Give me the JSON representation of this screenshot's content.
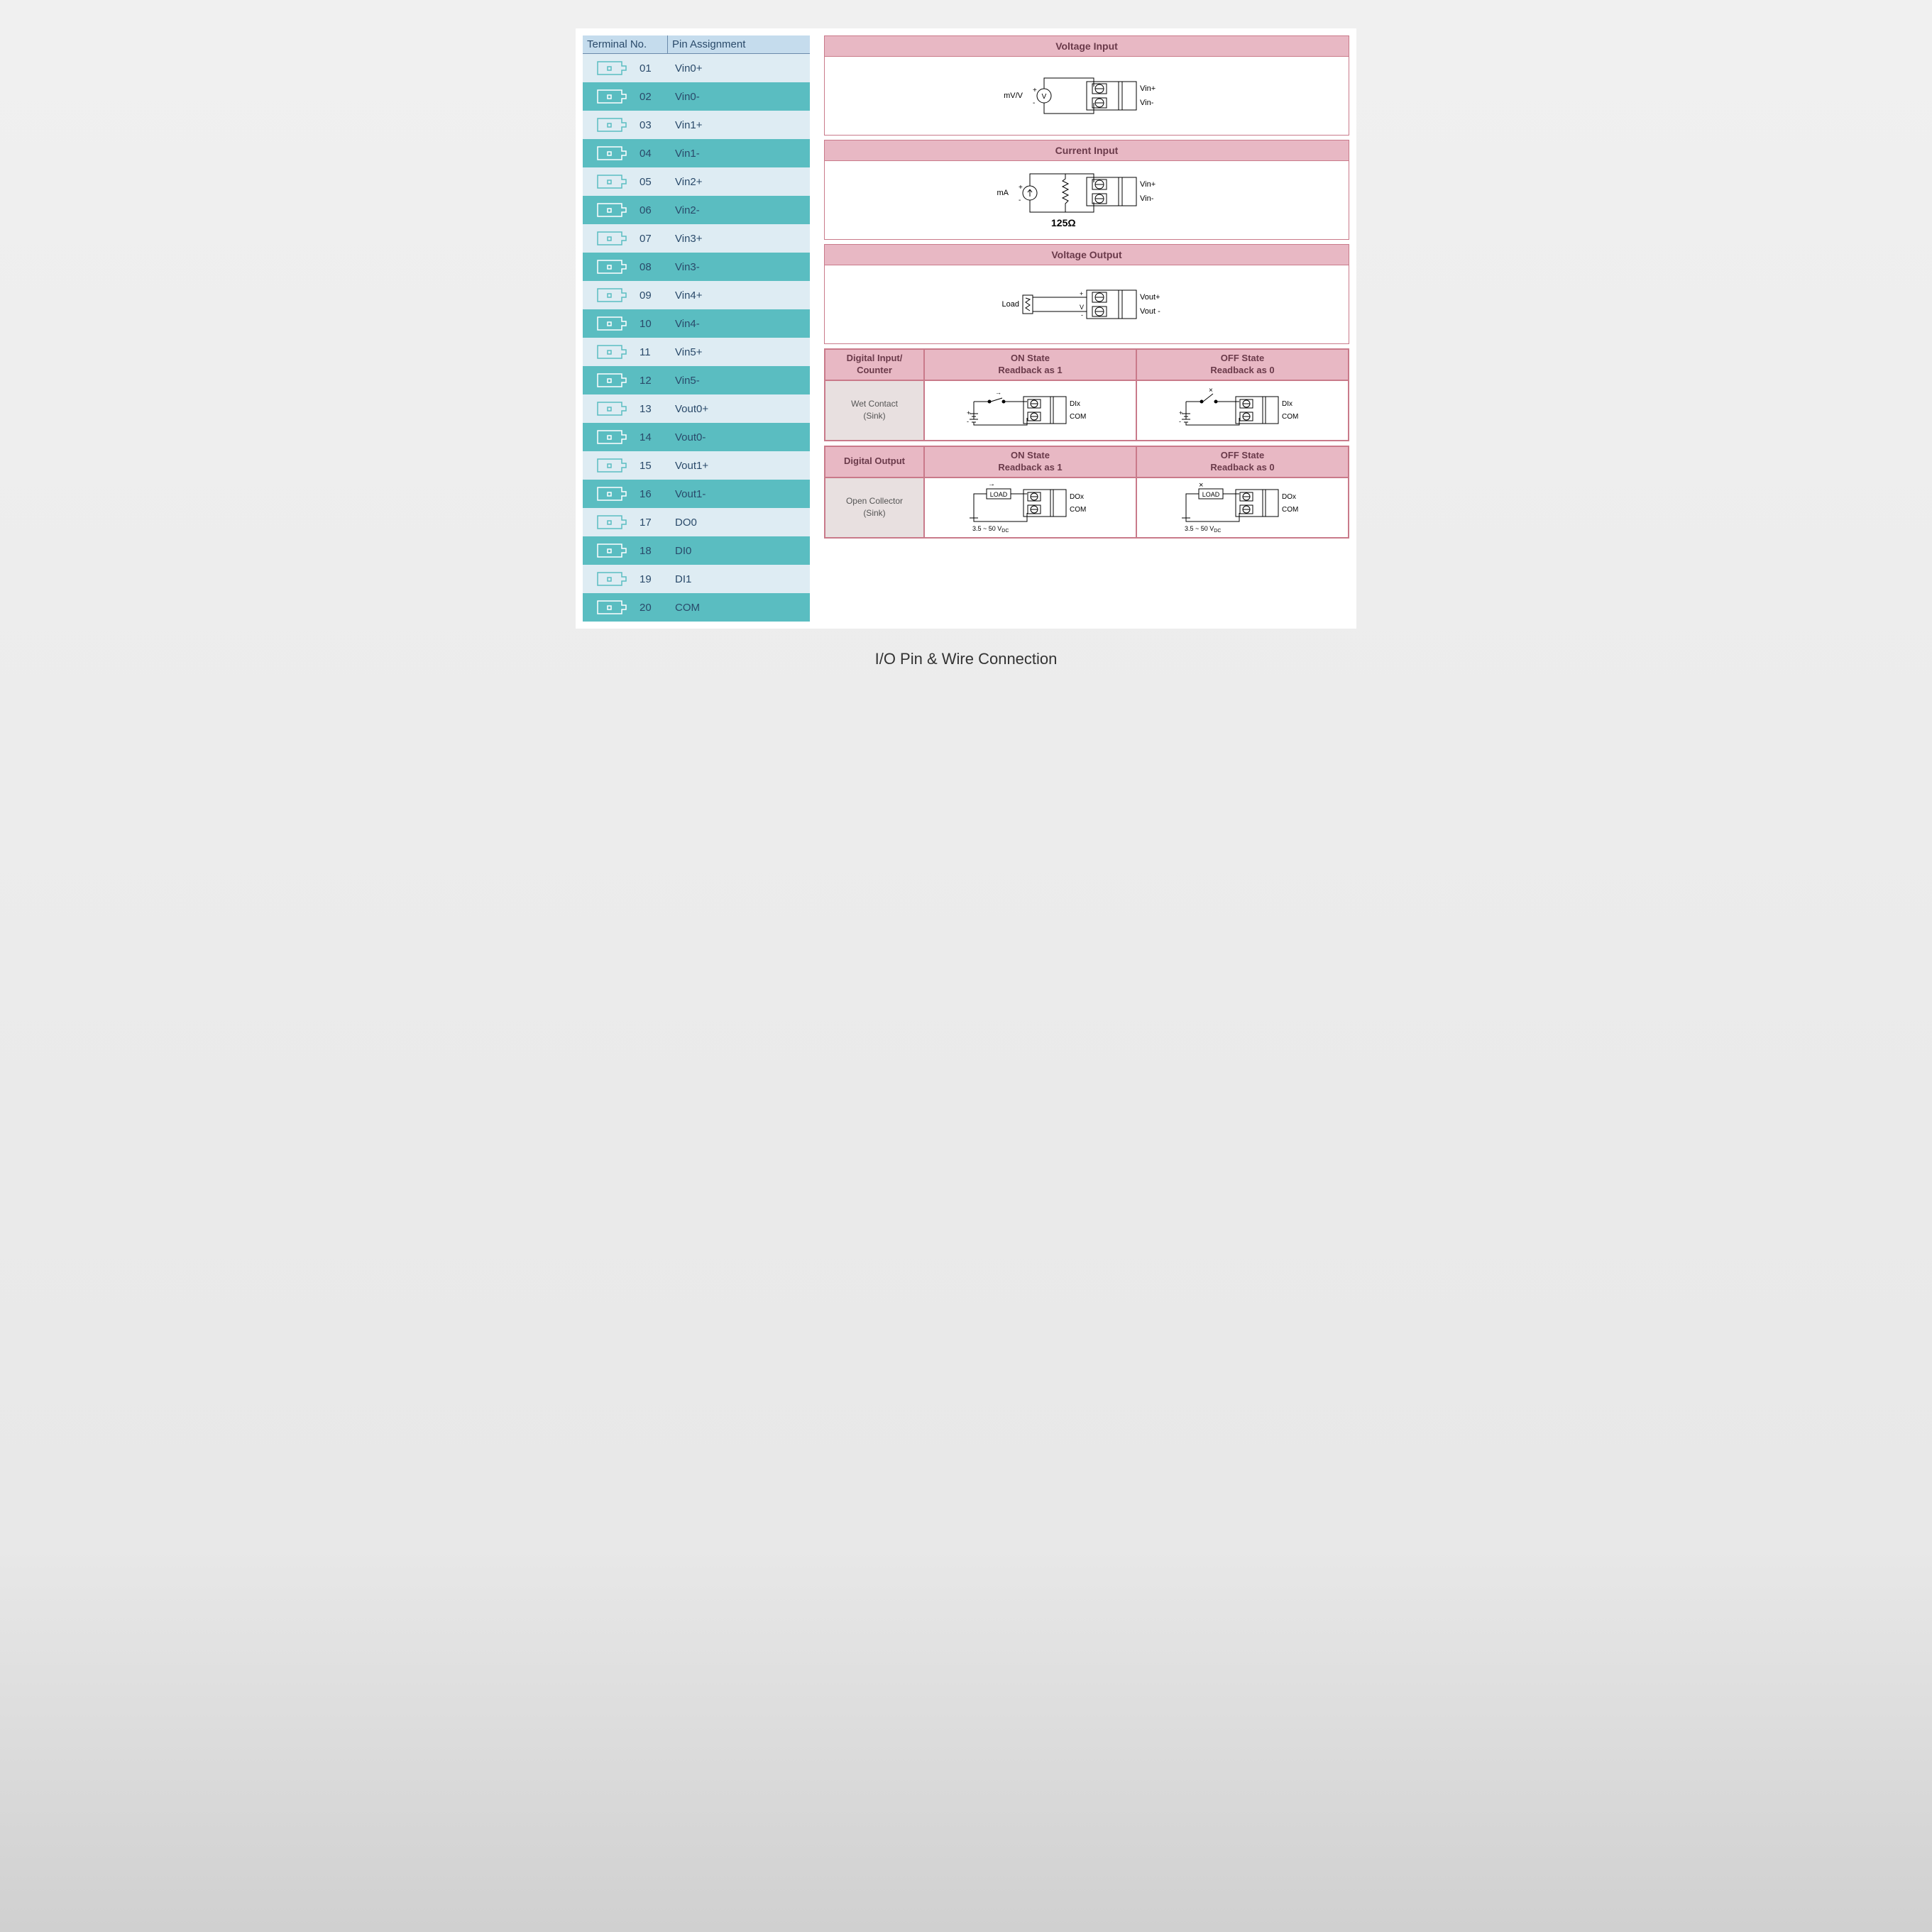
{
  "caption": "I/O Pin & Wire Connection",
  "terminal_table": {
    "header_col1": "Terminal No.",
    "header_col2": "Pin Assignment",
    "row_light_bg": "#deecf3",
    "row_dark_bg": "#5abdc1",
    "header_bg": "#c5dced",
    "text_color": "#2a4a6a",
    "icon_stroke_light": "#5abdc1",
    "icon_stroke_dark": "#ffffff",
    "rows": [
      {
        "num": "01",
        "pin": "Vin0+",
        "dark": false
      },
      {
        "num": "02",
        "pin": "Vin0-",
        "dark": true
      },
      {
        "num": "03",
        "pin": "Vin1+",
        "dark": false
      },
      {
        "num": "04",
        "pin": "Vin1-",
        "dark": true
      },
      {
        "num": "05",
        "pin": "Vin2+",
        "dark": false
      },
      {
        "num": "06",
        "pin": "Vin2-",
        "dark": true
      },
      {
        "num": "07",
        "pin": "Vin3+",
        "dark": false
      },
      {
        "num": "08",
        "pin": "Vin3-",
        "dark": true
      },
      {
        "num": "09",
        "pin": "Vin4+",
        "dark": false
      },
      {
        "num": "10",
        "pin": "Vin4-",
        "dark": true
      },
      {
        "num": "11",
        "pin": "Vin5+",
        "dark": false
      },
      {
        "num": "12",
        "pin": "Vin5-",
        "dark": true
      },
      {
        "num": "13",
        "pin": "Vout0+",
        "dark": false
      },
      {
        "num": "14",
        "pin": "Vout0-",
        "dark": true
      },
      {
        "num": "15",
        "pin": "Vout1+",
        "dark": false
      },
      {
        "num": "16",
        "pin": "Vout1-",
        "dark": true
      },
      {
        "num": "17",
        "pin": "DO0",
        "dark": false
      },
      {
        "num": "18",
        "pin": "DI0",
        "dark": true
      },
      {
        "num": "19",
        "pin": "DI1",
        "dark": false
      },
      {
        "num": "20",
        "pin": "COM",
        "dark": true
      }
    ]
  },
  "wiring": {
    "header_bg": "#e8b8c4",
    "header_text": "#6a3a4a",
    "border_color": "#c97a8a",
    "label_bg": "#e8e0e0",
    "sections": {
      "voltage_input": {
        "title": "Voltage Input",
        "source_label": "mV/V",
        "source_symbol": "V",
        "pin1": "Vin+",
        "pin2": "Vin-"
      },
      "current_input": {
        "title": "Current Input",
        "source_label": "mA",
        "resistor_label": "125Ω",
        "pin1": "Vin+",
        "pin2": "Vin-"
      },
      "voltage_output": {
        "title": "Voltage Output",
        "load_label": "Load",
        "pin1": "Vout+",
        "pin2": "Vout -"
      }
    },
    "digital_input": {
      "header": "Digital Input/\nCounter",
      "on_state": "ON State\nReadback as 1",
      "off_state": "OFF State\nReadback as 0",
      "label": "Wet Contact\n(Sink)",
      "pin1": "DIx",
      "pin2": "COM"
    },
    "digital_output": {
      "header": "Digital Output",
      "on_state": "ON State\nReadback as 1",
      "off_state": "OFF State\nReadback as 0",
      "label": "Open Collector\n(Sink)",
      "load_label": "LOAD",
      "voltage_label": "3.5 ~ 50 V",
      "voltage_sub": "DC",
      "pin1": "DOx",
      "pin2": "COM"
    }
  }
}
